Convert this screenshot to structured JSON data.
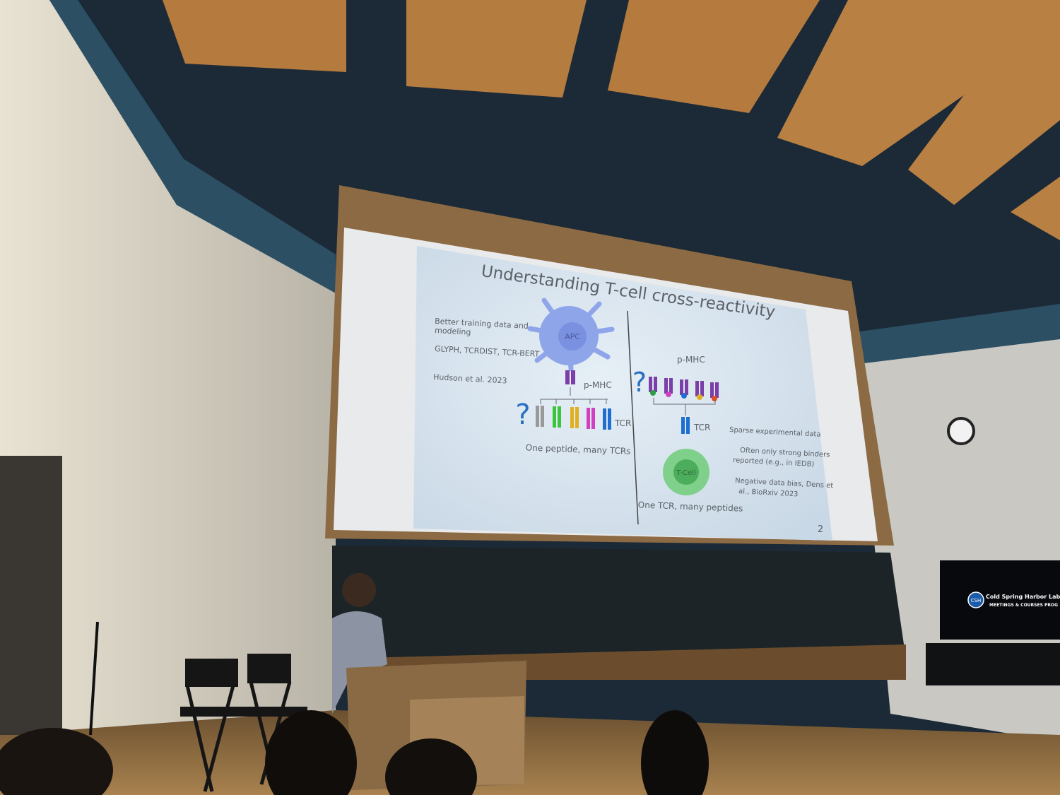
{
  "slide": {
    "title": "Understanding T-cell cross-reactivity",
    "left_bullets": [
      {
        "lines": [
          "Better training data and",
          "modeling"
        ]
      },
      {
        "lines": [
          "GLYPH, TCRDIST, TCR-BERT,..."
        ]
      },
      {
        "lines": [
          "Hudson et al. 2023"
        ]
      }
    ],
    "left_diagram": {
      "apc": "APC",
      "pmhc": "p-MHC",
      "tcr": "TCR",
      "question": "?",
      "caption": "One peptide, many TCRs"
    },
    "right_diagram": {
      "pmhc": "p-MHC",
      "tcr": "TCR",
      "question": "?",
      "cell": "T-Cell",
      "caption": "One TCR, many peptides"
    },
    "right_bullets": [
      {
        "lines": [
          "Sparse experimental data"
        ]
      },
      {
        "lines": [
          "Often only strong binders",
          "reported (e.g., in IEDB)"
        ]
      },
      {
        "lines": [
          "Negative data bias, Dens et",
          "al., BioRxiv 2023"
        ]
      }
    ],
    "page_number": "2"
  },
  "tv_screen": {
    "badge": "CSH",
    "name": "Cold Spring Harbor Laboratory",
    "subtitle": "MEETINGS & COURSES PROG"
  }
}
